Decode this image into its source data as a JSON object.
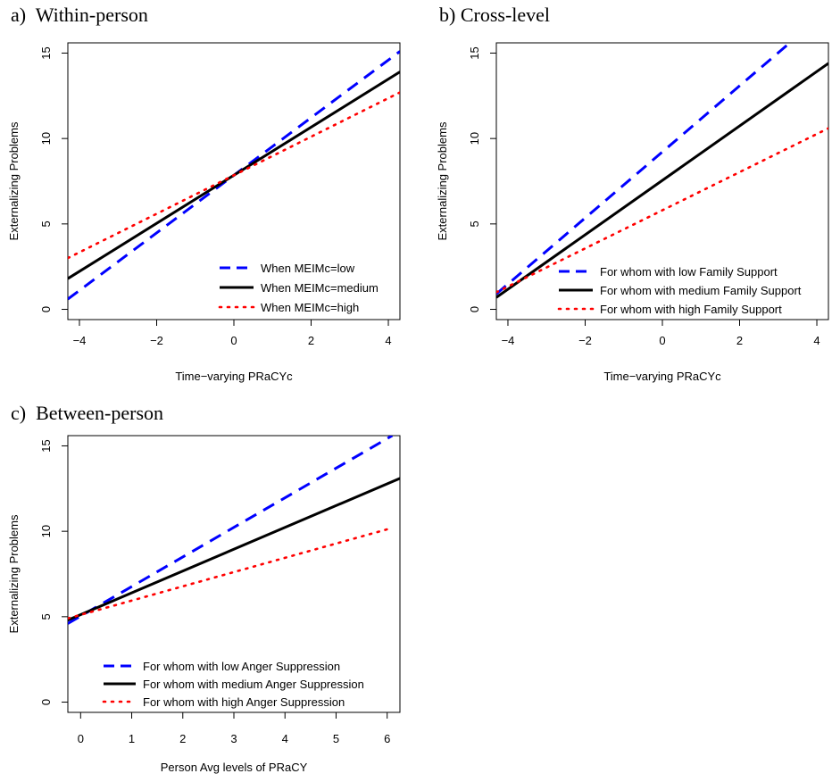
{
  "chart_data": [
    {
      "type": "line",
      "title": "a)  Within-person",
      "xlabel": "Time−varying PRaCYc",
      "ylabel": "Externalizing Problems",
      "xlim": [
        -4.3,
        4.3
      ],
      "ylim": [
        -0.6,
        15.6
      ],
      "xticks": [
        -4,
        -2,
        0,
        2,
        4
      ],
      "yticks": [
        0,
        5,
        10,
        15
      ],
      "xtick_labels": [
        "−4",
        "−2",
        "0",
        "2",
        "4"
      ],
      "ytick_labels": [
        "0",
        "5",
        "10",
        "15"
      ],
      "legend_position": "bottom-right",
      "series": [
        {
          "name": "When MEIMc=low",
          "color": "#0000ff",
          "style": "dashed",
          "x": [
            -4.3,
            4.3
          ],
          "y": [
            0.6,
            15.1
          ]
        },
        {
          "name": "When MEIMc=medium",
          "color": "#000000",
          "style": "solid",
          "x": [
            -4.3,
            4.3
          ],
          "y": [
            1.8,
            13.9
          ]
        },
        {
          "name": "When MEIMc=high",
          "color": "#ff0000",
          "style": "dotted",
          "x": [
            -4.3,
            4.3
          ],
          "y": [
            3.0,
            12.7
          ]
        }
      ]
    },
    {
      "type": "line",
      "title": "b) Cross-level",
      "xlabel": "Time−varying PRaCYc",
      "ylabel": "Externalizing Problems",
      "xlim": [
        -4.3,
        4.3
      ],
      "ylim": [
        -0.6,
        15.6
      ],
      "xticks": [
        -4,
        -2,
        0,
        2,
        4
      ],
      "yticks": [
        0,
        5,
        10,
        15
      ],
      "xtick_labels": [
        "−4",
        "−2",
        "0",
        "2",
        "4"
      ],
      "ytick_labels": [
        "0",
        "5",
        "10",
        "15"
      ],
      "legend_position": "bottom-right",
      "series": [
        {
          "name": "For whom with low Family Support",
          "color": "#0000ff",
          "style": "dashed",
          "x": [
            -4.3,
            3.3
          ],
          "y": [
            0.9,
            15.6
          ]
        },
        {
          "name": "For whom with medium Family Support",
          "color": "#000000",
          "style": "solid",
          "x": [
            -4.3,
            4.3
          ],
          "y": [
            0.7,
            14.4
          ]
        },
        {
          "name": "For whom with high Family Support",
          "color": "#ff0000",
          "style": "dotted",
          "x": [
            -4.3,
            4.3
          ],
          "y": [
            1.0,
            10.6
          ]
        }
      ]
    },
    {
      "type": "line",
      "title": "c)  Between-person",
      "xlabel": "Person Avg levels of PRaCY",
      "ylabel": "Externalizing Problems",
      "xlim": [
        -0.25,
        6.25
      ],
      "ylim": [
        -0.6,
        15.6
      ],
      "xticks": [
        0,
        1,
        2,
        3,
        4,
        5,
        6
      ],
      "yticks": [
        0,
        5,
        10,
        15
      ],
      "xtick_labels": [
        "0",
        "1",
        "2",
        "3",
        "4",
        "5",
        "6"
      ],
      "ytick_labels": [
        "0",
        "5",
        "10",
        "15"
      ],
      "legend_position": "bottom-left",
      "series": [
        {
          "name": "For whom with low Anger Suppression",
          "color": "#0000ff",
          "style": "dashed",
          "x": [
            -0.25,
            6.1
          ],
          "y": [
            4.6,
            15.6
          ]
        },
        {
          "name": "For whom with medium Anger Suppression",
          "color": "#000000",
          "style": "solid",
          "x": [
            -0.25,
            6.25
          ],
          "y": [
            4.8,
            13.1
          ]
        },
        {
          "name": "For whom with high Anger Suppression",
          "color": "#ff0000",
          "style": "dotted",
          "x": [
            -0.25,
            6.1
          ],
          "y": [
            4.9,
            10.2
          ]
        }
      ]
    }
  ]
}
